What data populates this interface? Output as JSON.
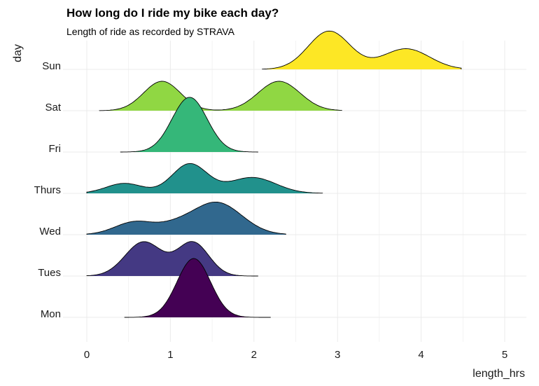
{
  "chart_data": {
    "type": "ridgeline",
    "title": "How long do I ride my bike each day?",
    "subtitle": "Length of ride as recorded by STRAVA",
    "xlabel": "length_hrs",
    "ylabel": "day",
    "xlim": [
      0,
      5
    ],
    "x_ticks": [
      0,
      1,
      2,
      3,
      4,
      5
    ],
    "grid": "on",
    "legend": "none",
    "series": [
      {
        "name": "Mon",
        "color": "#440154",
        "range": [
          0.45,
          2.2
        ],
        "peaks": [
          {
            "x": 1.28,
            "sd": 0.2,
            "h": 1.0
          }
        ]
      },
      {
        "name": "Tues",
        "color": "#443983",
        "range": [
          0.0,
          2.05
        ],
        "peaks": [
          {
            "x": 0.68,
            "sd": 0.22,
            "h": 0.58
          },
          {
            "x": 1.27,
            "sd": 0.19,
            "h": 0.57
          }
        ]
      },
      {
        "name": "Wed",
        "color": "#31688e",
        "range": [
          0.0,
          2.38
        ],
        "peaks": [
          {
            "x": 0.58,
            "sd": 0.24,
            "h": 0.22
          },
          {
            "x": 1.05,
            "sd": 0.2,
            "h": 0.1
          },
          {
            "x": 1.55,
            "sd": 0.3,
            "h": 0.55
          }
        ]
      },
      {
        "name": "Thurs",
        "color": "#21918c",
        "range": [
          0.0,
          2.82
        ],
        "peaks": [
          {
            "x": 0.45,
            "sd": 0.22,
            "h": 0.17
          },
          {
            "x": 1.23,
            "sd": 0.21,
            "h": 0.5
          },
          {
            "x": 1.98,
            "sd": 0.28,
            "h": 0.27
          }
        ]
      },
      {
        "name": "Fri",
        "color": "#35b779",
        "range": [
          0.4,
          2.05
        ],
        "peaks": [
          {
            "x": 1.23,
            "sd": 0.21,
            "h": 0.93
          }
        ]
      },
      {
        "name": "Sat",
        "color": "#90d743",
        "range": [
          0.15,
          3.05
        ],
        "peaks": [
          {
            "x": 0.9,
            "sd": 0.22,
            "h": 0.5
          },
          {
            "x": 2.3,
            "sd": 0.25,
            "h": 0.5
          }
        ]
      },
      {
        "name": "Sun",
        "color": "#fde725",
        "range": [
          2.1,
          4.48
        ],
        "peaks": [
          {
            "x": 2.9,
            "sd": 0.25,
            "h": 0.65
          },
          {
            "x": 3.82,
            "sd": 0.28,
            "h": 0.35
          }
        ]
      }
    ]
  }
}
